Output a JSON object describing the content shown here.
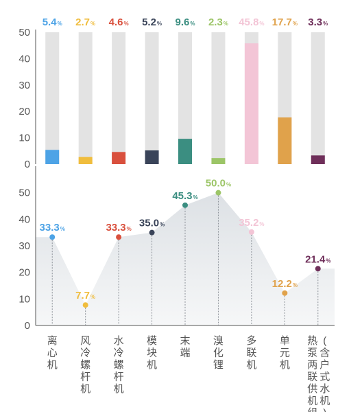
{
  "chart_data": [
    {
      "type": "bar",
      "categories": [
        "离心机",
        "风冷螺杆机",
        "水冷螺杆机",
        "模块机",
        "末端",
        "溴化锂",
        "多联机",
        "单元机",
        "热泵两联供机组(含户式水机)"
      ],
      "value_labels": [
        "5.4",
        "2.7",
        "4.6",
        "5.2",
        "9.6",
        "2.3",
        "45.8",
        "17.7",
        "3.3"
      ],
      "values": [
        5.4,
        2.7,
        4.6,
        5.2,
        9.6,
        2.3,
        45.8,
        17.7,
        3.3
      ],
      "unit_label": "%",
      "ylim": [
        0,
        50
      ],
      "yticks": [
        "0",
        "10",
        "20",
        "30",
        "40",
        "50"
      ],
      "grid": false,
      "track_color": "#e3e3e3",
      "colors": [
        "#4da3e6",
        "#f0bd3d",
        "#d9503d",
        "#3a4459",
        "#3b8e81",
        "#9cc567",
        "#f3c5d6",
        "#e0a24b",
        "#6f2f5a"
      ]
    },
    {
      "type": "area",
      "categories": [
        "离心机",
        "风冷螺杆机",
        "水冷螺杆机",
        "模块机",
        "末端",
        "溴化锂",
        "多联机",
        "单元机",
        "热泵两联供机组(含户式水机)"
      ],
      "value_labels": [
        "33.3",
        "7.7",
        "33.3",
        "35.0",
        "45.3",
        "50.0",
        "35.2",
        "12.2",
        "21.4"
      ],
      "values": [
        33.3,
        7.7,
        33.3,
        35.0,
        45.3,
        50.0,
        35.2,
        12.2,
        21.4
      ],
      "unit_label": "%",
      "ylim": [
        0,
        60
      ],
      "yticks": [
        "0",
        "10",
        "20",
        "30",
        "40",
        "50"
      ],
      "grid": false,
      "colors": [
        "#4da3e6",
        "#f0bd3d",
        "#d9503d",
        "#3a4459",
        "#3b8e81",
        "#9cc567",
        "#f3c5d6",
        "#e0a24b",
        "#6f2f5a"
      ]
    }
  ],
  "category_labels": [
    [
      "离",
      "心",
      "机"
    ],
    [
      "风",
      "冷",
      "螺",
      "杆",
      "机"
    ],
    [
      "水",
      "冷",
      "螺",
      "杆",
      "机"
    ],
    [
      "模",
      "块",
      "机"
    ],
    [
      "末",
      "端"
    ],
    [
      "溴",
      "化",
      "锂"
    ],
    [
      "多",
      "联",
      "机"
    ],
    [
      "单",
      "元",
      "机"
    ],
    [
      [
        "热",
        "泵",
        "两",
        "联",
        "供",
        "机",
        "组"
      ],
      [
        "(",
        "含",
        "户",
        "式",
        "水",
        "机",
        ")"
      ]
    ]
  ]
}
